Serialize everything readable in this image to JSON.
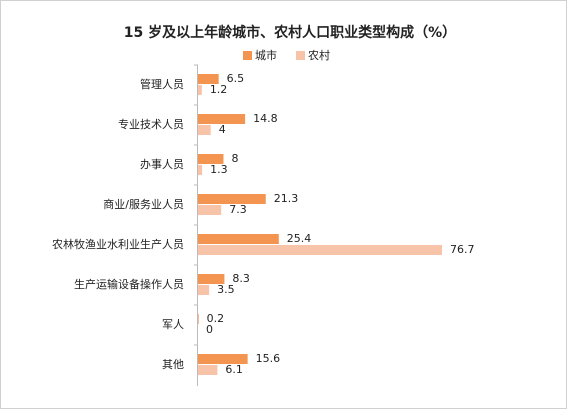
{
  "chart_data": {
    "type": "hbar",
    "title": "15 岁及以上年龄城市、农村人口职业类型构成（%）",
    "categories": [
      "管理人员",
      "专业技术人员",
      "办事人员",
      "商业/服务业人员",
      "农林牧渔业水利业生产人员",
      "生产运输设备操作人员",
      "军人",
      "其他"
    ],
    "series": [
      {
        "name": "城市",
        "color": "#f39550",
        "values": [
          6.5,
          14.8,
          8,
          21.3,
          25.4,
          8.3,
          0.2,
          15.6
        ]
      },
      {
        "name": "农村",
        "color": "#f8c4a9",
        "values": [
          1.2,
          4,
          1.3,
          7.3,
          76.7,
          3.5,
          0,
          6.1
        ]
      }
    ],
    "legend": "top"
  }
}
